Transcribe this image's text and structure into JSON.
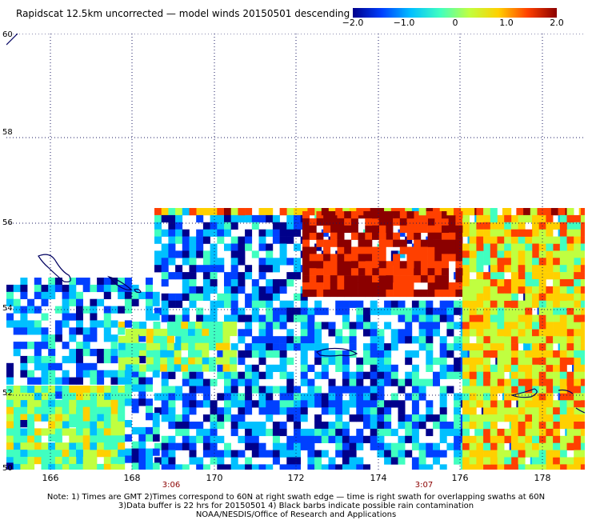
{
  "header": {
    "title": "Rapidscat 12.5km uncorrected — model winds 20150501 descending"
  },
  "colorbar": {
    "tick_labels": [
      "−2.0",
      "−1.0",
      "0",
      "1.0",
      "2.0"
    ],
    "tick_values": [
      -2.0,
      -1.0,
      0,
      1.0,
      2.0
    ],
    "range": [
      -2.0,
      2.0
    ],
    "colors": [
      "#00008b",
      "#0040ff",
      "#00c0ff",
      "#40ffc0",
      "#c0ff40",
      "#ffd000",
      "#ff4000",
      "#8b0000"
    ]
  },
  "map": {
    "lat_labels": [
      "60",
      "58",
      "56",
      "54",
      "52",
      "50"
    ],
    "lon_labels": [
      "166",
      "168",
      "170",
      "172",
      "174",
      "176",
      "178"
    ],
    "time_labels": [
      "3:06",
      "3:07"
    ],
    "gridlines": true,
    "coastline_color": "#000080",
    "missing_data_color": "#ffffff"
  },
  "footer": {
    "note_line1": "Note: 1) Times are GMT 2)Times correspond to 60N at right swath edge — time is right swath for overlapping swaths at 60N",
    "note_line2": "3)Data buffer is 22 hrs for 20150501 4) Black barbs indicate possible rain contamination",
    "credit": "NOAA/NESDIS/Office of Research and Applications"
  }
}
